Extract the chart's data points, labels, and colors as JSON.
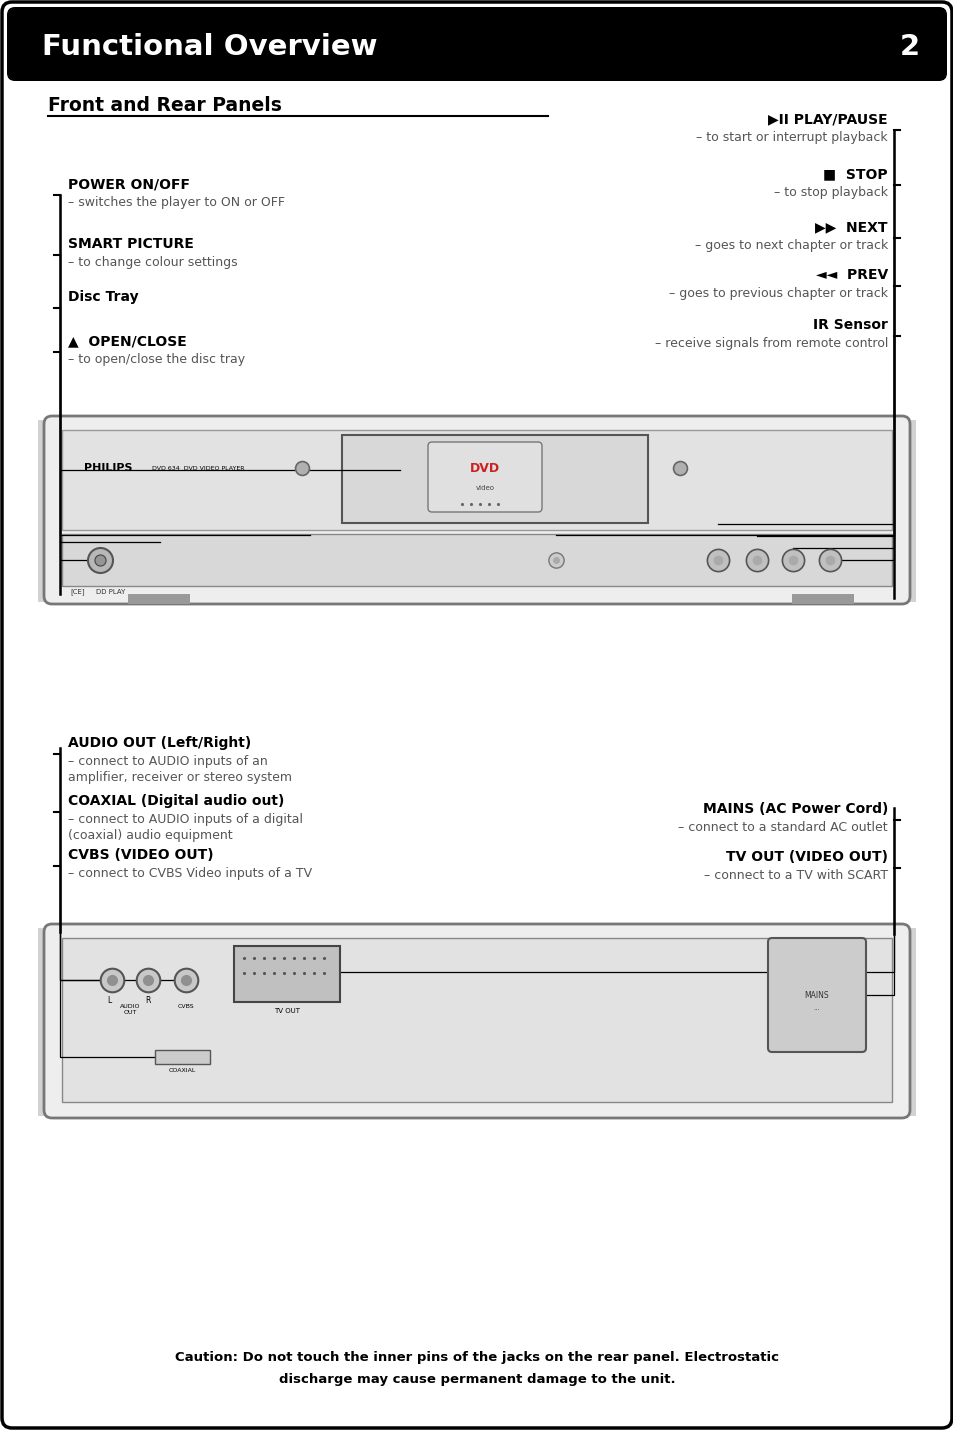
{
  "title": "Functional Overview",
  "page_num": "2",
  "subtitle": "Front and Rear Panels",
  "bg_color": "#ffffff",
  "header_bg": "#000000",
  "gray_bg": "#d0d0d0",
  "caution_line1": "Caution: Do not touch the inner pins of the jacks on the rear panel. Electrostatic",
  "caution_line2": "discharge may cause permanent damage to the unit."
}
